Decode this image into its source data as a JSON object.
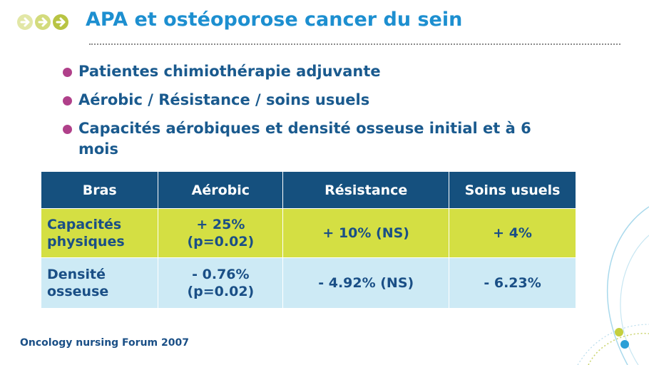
{
  "slide": {
    "title": "APA et ostéoporose cancer du sein",
    "bullets": [
      "Patientes chimiothérapie adjuvante",
      "Aérobic / Résistance / soins usuels",
      "Capacités aérobiques et densité osseuse initial et à 6 mois"
    ],
    "table": {
      "headers": [
        "Bras",
        "Aérobic",
        "Résistance",
        "Soins usuels"
      ],
      "rows": [
        [
          "Capacités physiques",
          "+ 25% (p=0.02)",
          "+ 10% (NS)",
          "+ 4%"
        ],
        [
          "Densité osseuse",
          "- 0.76% (p=0.02)",
          "- 4.92% (NS)",
          "- 6.23%"
        ]
      ]
    },
    "footer": "Oncology nursing Forum 2007"
  },
  "colors": {
    "title": "#1d8fd0",
    "bullet_text": "#1a5a8e",
    "bullet_dot": "#b0408a",
    "header_bg": "#15507e",
    "row1_bg": "#d4df43",
    "row2_bg": "#cdeaf5",
    "arrow": "#b8c443"
  }
}
